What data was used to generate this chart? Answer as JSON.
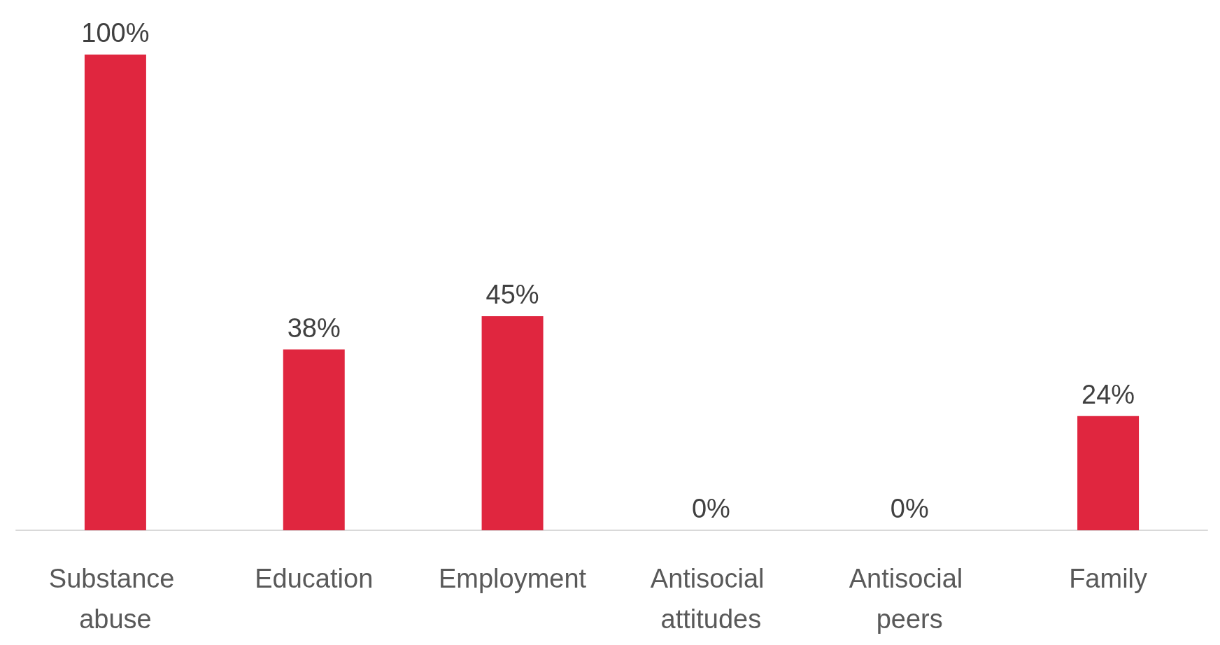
{
  "chart_data": {
    "type": "bar",
    "categories": [
      "Substance abuse",
      "Education",
      "Employment",
      "Antisocial attitudes",
      "Antisocial peers",
      "Family"
    ],
    "values": [
      100,
      38,
      45,
      0,
      0,
      24
    ],
    "value_labels": [
      "100%",
      "38%",
      "45%",
      "0%",
      "0%",
      "24%"
    ],
    "color": "#e0263f"
  }
}
